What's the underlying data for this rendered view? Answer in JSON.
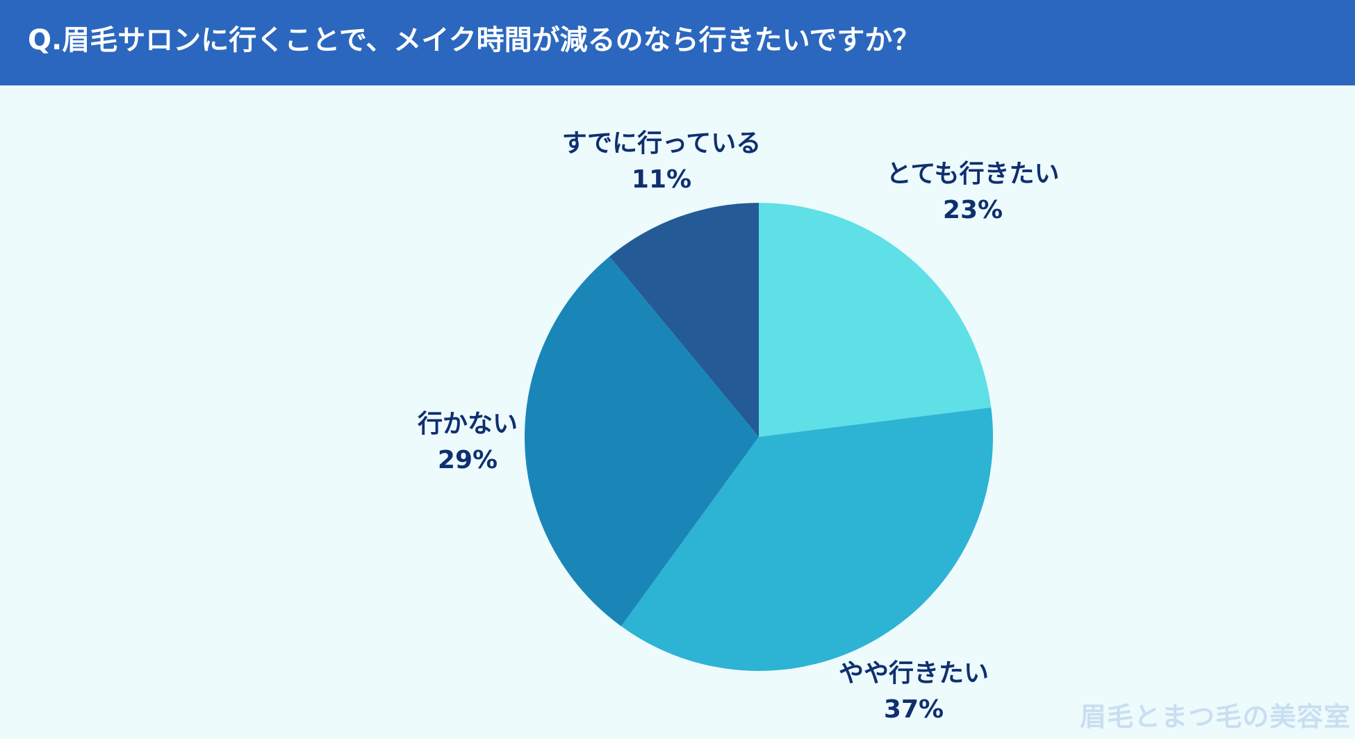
{
  "header": {
    "title": "Q.眉毛サロンに行くことで、メイク時間が減るのなら行きたいですか？"
  },
  "colors": {
    "header_bg": "#2b67be",
    "background": "#edfbfd",
    "label_text": "#0f2f6e"
  },
  "chart_data": {
    "type": "pie",
    "title": "",
    "start": "12 o'clock",
    "direction": "clockwise",
    "slices": [
      {
        "label": "とても行きたい",
        "value": 23,
        "display": "23%",
        "color": "#5ee0e6"
      },
      {
        "label": "やや行きたい",
        "value": 37,
        "display": "37%",
        "color": "#2db3d4"
      },
      {
        "label": "行かない",
        "value": 29,
        "display": "29%",
        "color": "#1a86b8"
      },
      {
        "label": "すでに行っている",
        "value": 11,
        "display": "11%",
        "color": "#245a96"
      }
    ]
  },
  "watermark": {
    "text": "眉毛とまつ毛の美容室"
  }
}
